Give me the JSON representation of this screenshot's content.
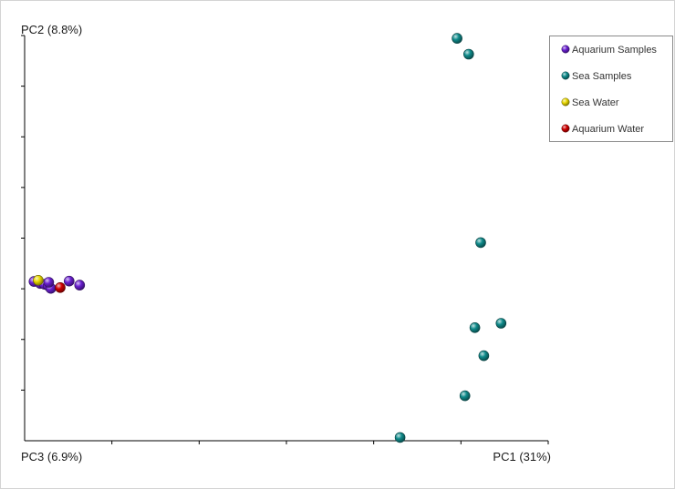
{
  "chart_data": {
    "type": "scatter",
    "title": "",
    "xlabel": "PC1 (31%)",
    "ylabel": "PC2 (8.8%)",
    "zlabel": "PC3 (6.9%)",
    "xlim": [
      0,
      1
    ],
    "ylim": [
      0,
      1
    ],
    "grid": false,
    "legend_position": "top-right",
    "series": [
      {
        "name": "Aquarium Samples",
        "color": "#6a1fd1",
        "points": [
          {
            "x": 0.018,
            "y": 0.393
          },
          {
            "x": 0.03,
            "y": 0.388
          },
          {
            "x": 0.038,
            "y": 0.386
          },
          {
            "x": 0.045,
            "y": 0.383
          },
          {
            "x": 0.05,
            "y": 0.376
          },
          {
            "x": 0.046,
            "y": 0.391
          },
          {
            "x": 0.085,
            "y": 0.394
          },
          {
            "x": 0.105,
            "y": 0.384
          }
        ]
      },
      {
        "name": "Sea Samples",
        "color": "#0f8b8b",
        "points": [
          {
            "x": 0.826,
            "y": 0.993
          },
          {
            "x": 0.848,
            "y": 0.954
          },
          {
            "x": 0.871,
            "y": 0.489
          },
          {
            "x": 0.86,
            "y": 0.279
          },
          {
            "x": 0.91,
            "y": 0.29
          },
          {
            "x": 0.877,
            "y": 0.21
          },
          {
            "x": 0.841,
            "y": 0.111
          },
          {
            "x": 0.717,
            "y": 0.008
          }
        ]
      },
      {
        "name": "Sea Water",
        "color": "#e9d800",
        "points": [
          {
            "x": 0.026,
            "y": 0.396
          }
        ]
      },
      {
        "name": "Aquarium Water",
        "color": "#d00000",
        "points": [
          {
            "x": 0.068,
            "y": 0.378
          }
        ]
      }
    ]
  }
}
